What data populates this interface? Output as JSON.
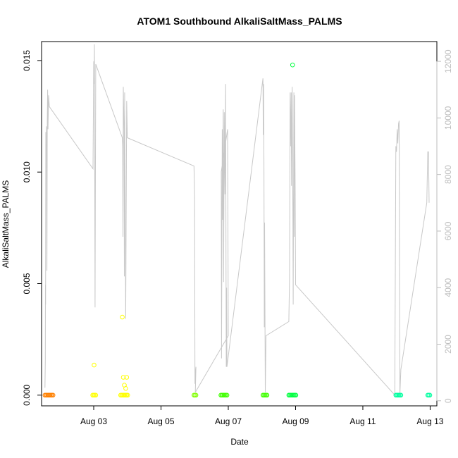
{
  "chart_data": {
    "type": "scatter",
    "title": "ATOM1 Southbound AlkaliSaltMass_PALMS",
    "xlabel": "Date",
    "ylabel": "AlkaliSaltMass_PALMS",
    "x_ticks": [
      "Aug 03",
      "Aug 05",
      "Aug 07",
      "Aug 09",
      "Aug 11",
      "Aug 13"
    ],
    "x_tick_values": [
      3,
      5,
      7,
      9,
      11,
      13
    ],
    "xlim": [
      1.45,
      13.2
    ],
    "ylim": [
      -0.00048,
      0.01585
    ],
    "y_ticks": [
      "0.000",
      "0.005",
      "0.010",
      "0.015"
    ],
    "y_tick_values": [
      0,
      0.005,
      0.01,
      0.015
    ],
    "right_axis": {
      "ylim": [
        -180,
        12700
      ],
      "ticks": [
        "0",
        "2000",
        "4000",
        "6000",
        "8000",
        "10000",
        "12000"
      ],
      "tick_values": [
        0,
        2000,
        4000,
        6000,
        8000,
        10000,
        12000
      ],
      "color": "#bdbdbd"
    },
    "colors": {
      "line": "#c8c8c8",
      "aug01": "#ff8000",
      "aug03": "#ffff00",
      "aug06": "#80ff00",
      "aug07": "#40ff00",
      "aug08": "#00ff40",
      "aug12": "#00ffa0"
    },
    "points": [
      {
        "x": 1.55,
        "y": 0.0,
        "color": "#ff8000"
      },
      {
        "x": 1.58,
        "y": 0.0,
        "color": "#ff8000"
      },
      {
        "x": 1.61,
        "y": 0.0,
        "color": "#ff8000"
      },
      {
        "x": 1.64,
        "y": 0.0,
        "color": "#ff8000"
      },
      {
        "x": 1.67,
        "y": 0.0,
        "color": "#ff8000"
      },
      {
        "x": 1.7,
        "y": 0.0,
        "color": "#ff8000"
      },
      {
        "x": 1.73,
        "y": 0.0,
        "color": "#ff8000"
      },
      {
        "x": 1.76,
        "y": 0.0,
        "color": "#ff8000"
      },
      {
        "x": 1.79,
        "y": 0.0,
        "color": "#ff8000"
      },
      {
        "x": 2.97,
        "y": 0.0,
        "color": "#ffff00"
      },
      {
        "x": 3.0,
        "y": 0.0,
        "color": "#ffff00"
      },
      {
        "x": 3.03,
        "y": 0.0,
        "color": "#ffff00"
      },
      {
        "x": 3.06,
        "y": 0.0,
        "color": "#ffff00"
      },
      {
        "x": 3.01,
        "y": 0.00135,
        "color": "#ffff00"
      },
      {
        "x": 3.8,
        "y": 0.0,
        "color": "#ffff00"
      },
      {
        "x": 3.83,
        "y": 0.0,
        "color": "#ffff00"
      },
      {
        "x": 3.86,
        "y": 0.0,
        "color": "#ffff00"
      },
      {
        "x": 3.89,
        "y": 0.0,
        "color": "#ffff00"
      },
      {
        "x": 3.92,
        "y": 0.0,
        "color": "#ffff00"
      },
      {
        "x": 3.95,
        "y": 0.0,
        "color": "#ffff00"
      },
      {
        "x": 3.98,
        "y": 0.0,
        "color": "#ffff00"
      },
      {
        "x": 4.01,
        "y": 0.0,
        "color": "#ffff00"
      },
      {
        "x": 3.85,
        "y": 0.0035,
        "color": "#ffff00"
      },
      {
        "x": 3.88,
        "y": 0.0008,
        "color": "#ffff00"
      },
      {
        "x": 3.98,
        "y": 0.0008,
        "color": "#ffff00"
      },
      {
        "x": 3.91,
        "y": 0.00045,
        "color": "#ffff00"
      },
      {
        "x": 3.95,
        "y": 0.0003,
        "color": "#ffff00"
      },
      {
        "x": 5.98,
        "y": 0.0,
        "color": "#80ff00"
      },
      {
        "x": 6.01,
        "y": 0.0,
        "color": "#80ff00"
      },
      {
        "x": 6.04,
        "y": 0.0,
        "color": "#80ff00"
      },
      {
        "x": 6.78,
        "y": 0.0,
        "color": "#40ff00"
      },
      {
        "x": 6.81,
        "y": 0.0,
        "color": "#40ff00"
      },
      {
        "x": 6.84,
        "y": 0.0,
        "color": "#40ff00"
      },
      {
        "x": 6.87,
        "y": 0.0,
        "color": "#40ff00"
      },
      {
        "x": 6.9,
        "y": 0.0,
        "color": "#40ff00"
      },
      {
        "x": 6.93,
        "y": 0.0,
        "color": "#40ff00"
      },
      {
        "x": 6.96,
        "y": 0.0,
        "color": "#40ff00"
      },
      {
        "x": 8.03,
        "y": 0.0,
        "color": "#40ff00"
      },
      {
        "x": 8.06,
        "y": 0.0,
        "color": "#40ff00"
      },
      {
        "x": 8.09,
        "y": 0.0,
        "color": "#40ff00"
      },
      {
        "x": 8.12,
        "y": 0.0,
        "color": "#40ff00"
      },
      {
        "x": 8.15,
        "y": 0.0,
        "color": "#40ff00"
      },
      {
        "x": 8.8,
        "y": 0.0,
        "color": "#00ff40"
      },
      {
        "x": 8.83,
        "y": 0.0,
        "color": "#00ff40"
      },
      {
        "x": 8.86,
        "y": 0.0,
        "color": "#00ff40"
      },
      {
        "x": 8.89,
        "y": 0.0,
        "color": "#00ff40"
      },
      {
        "x": 8.92,
        "y": 0.0,
        "color": "#00ff40"
      },
      {
        "x": 8.95,
        "y": 0.0,
        "color": "#00ff40"
      },
      {
        "x": 8.98,
        "y": 0.0,
        "color": "#00ff40"
      },
      {
        "x": 9.01,
        "y": 0.0,
        "color": "#00ff40"
      },
      {
        "x": 8.91,
        "y": 0.0148,
        "color": "#00ff40"
      },
      {
        "x": 11.98,
        "y": 0.0,
        "color": "#00ffa0"
      },
      {
        "x": 12.01,
        "y": 0.0,
        "color": "#00ffa0"
      },
      {
        "x": 12.04,
        "y": 0.0,
        "color": "#00ffa0"
      },
      {
        "x": 12.07,
        "y": 0.0,
        "color": "#00ffa0"
      },
      {
        "x": 12.1,
        "y": 0.0,
        "color": "#00ffa0"
      },
      {
        "x": 12.13,
        "y": 0.0,
        "color": "#00ffa0"
      },
      {
        "x": 12.93,
        "y": 0.0,
        "color": "#00ffa0"
      },
      {
        "x": 12.96,
        "y": 0.0,
        "color": "#00ffa0"
      },
      {
        "x": 12.99,
        "y": 0.0,
        "color": "#00ffa0"
      }
    ],
    "line_series": [
      [
        1.55,
        460
      ],
      [
        1.56,
        1400
      ],
      [
        1.565,
        4100
      ],
      [
        1.57,
        3400
      ],
      [
        1.575,
        9500
      ],
      [
        1.585,
        9000
      ],
      [
        1.595,
        9700
      ],
      [
        1.61,
        4600
      ],
      [
        1.62,
        9900
      ],
      [
        1.63,
        11000
      ],
      [
        1.64,
        9600
      ],
      [
        1.66,
        10800
      ],
      [
        1.68,
        10400
      ],
      [
        2.98,
        8200
      ],
      [
        3.0,
        12000
      ],
      [
        3.01,
        11200
      ],
      [
        3.02,
        12600
      ],
      [
        3.04,
        3300
      ],
      [
        3.06,
        11900
      ],
      [
        3.85,
        9300
      ],
      [
        3.86,
        9000
      ],
      [
        3.87,
        5800
      ],
      [
        3.88,
        11100
      ],
      [
        3.9,
        9600
      ],
      [
        3.91,
        4400
      ],
      [
        3.92,
        10900
      ],
      [
        3.93,
        8200
      ],
      [
        3.95,
        2900
      ],
      [
        3.97,
        7800
      ],
      [
        3.98,
        10600
      ],
      [
        4.0,
        9300
      ],
      [
        5.98,
        8300
      ],
      [
        6.0,
        7200
      ],
      [
        6.01,
        600
      ],
      [
        6.02,
        1000
      ],
      [
        6.04,
        1200
      ],
      [
        6.02,
        300
      ],
      [
        7.0,
        2300
      ],
      [
        6.98,
        9600
      ],
      [
        6.79,
        8100
      ],
      [
        6.8,
        1500
      ],
      [
        6.82,
        9600
      ],
      [
        6.83,
        6400
      ],
      [
        6.85,
        10300
      ],
      [
        6.86,
        4200
      ],
      [
        6.88,
        10200
      ],
      [
        6.9,
        7300
      ],
      [
        6.92,
        11200
      ],
      [
        6.94,
        1200
      ],
      [
        6.95,
        4000
      ],
      [
        6.96,
        1200
      ],
      [
        8.03,
        11400
      ],
      [
        8.04,
        9400
      ],
      [
        8.05,
        11200
      ],
      [
        8.06,
        8300
      ],
      [
        8.07,
        2600
      ],
      [
        8.08,
        6300
      ],
      [
        8.1,
        300
      ],
      [
        8.12,
        2300
      ],
      [
        8.8,
        2800
      ],
      [
        8.82,
        4300
      ],
      [
        8.84,
        10900
      ],
      [
        8.85,
        9000
      ],
      [
        8.87,
        10900
      ],
      [
        8.88,
        7600
      ],
      [
        8.9,
        11100
      ],
      [
        8.92,
        6400
      ],
      [
        8.93,
        3400
      ],
      [
        8.95,
        10900
      ],
      [
        8.96,
        5800
      ],
      [
        8.97,
        10800
      ],
      [
        8.99,
        7200
      ],
      [
        9.0,
        4100
      ],
      [
        11.95,
        200
      ],
      [
        11.98,
        9000
      ],
      [
        12.0,
        8800
      ],
      [
        12.02,
        9600
      ],
      [
        12.04,
        9100
      ],
      [
        12.06,
        9800
      ],
      [
        12.08,
        9900
      ],
      [
        12.1,
        200
      ],
      [
        12.13,
        1100
      ],
      [
        12.9,
        7000
      ],
      [
        12.93,
        8800
      ],
      [
        12.95,
        8800
      ],
      [
        12.97,
        7000
      ]
    ],
    "grid": false,
    "legend": "none"
  }
}
